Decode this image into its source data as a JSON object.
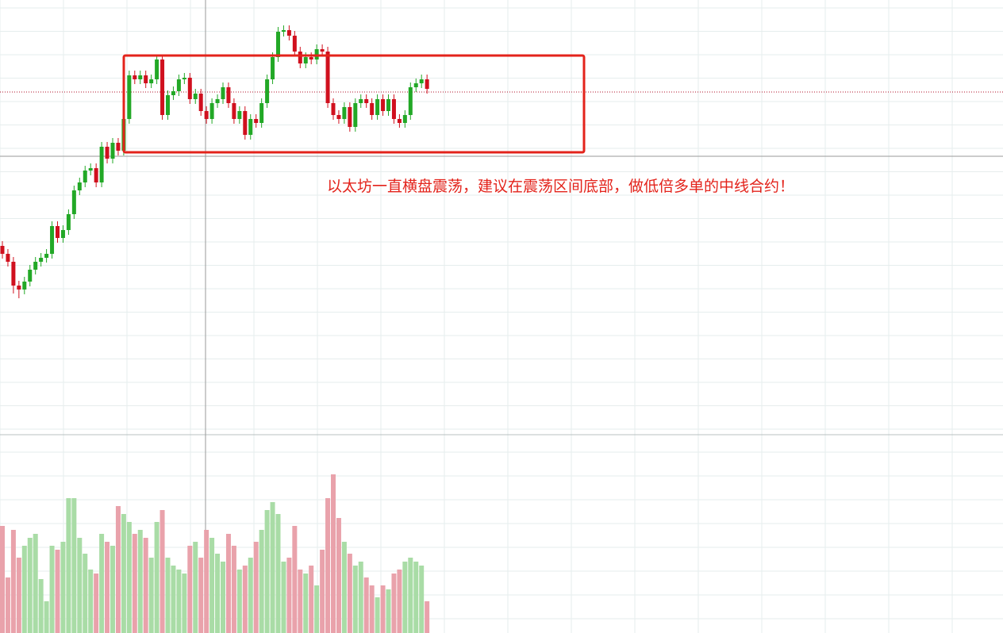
{
  "chart_data": {
    "type": "candlestick",
    "annotation": "以太坊一直横盘震荡，建议在震荡区间底部，做低倍多单的中线合约！",
    "open": [
      238,
      228,
      218,
      188,
      183,
      193,
      208,
      218,
      223,
      228,
      263,
      248,
      258,
      278,
      308,
      318,
      333,
      336,
      318,
      363,
      348,
      368,
      358,
      398,
      453,
      448,
      453,
      443,
      448,
      473,
      403,
      428,
      433,
      448,
      450,
      423,
      430,
      408,
      398,
      418,
      423,
      438,
      418,
      398,
      408,
      378,
      398,
      393,
      418,
      448,
      476,
      508,
      510,
      503,
      483,
      468,
      476,
      473,
      486,
      483,
      418,
      403,
      398,
      413,
      388,
      418,
      423,
      418,
      403,
      423,
      408,
      423,
      398,
      393,
      403,
      438,
      443,
      448
    ],
    "high": [
      244,
      234,
      224,
      194,
      199,
      214,
      224,
      229,
      234,
      269,
      269,
      264,
      284,
      314,
      324,
      339,
      342,
      342,
      369,
      369,
      374,
      374,
      404,
      459,
      459,
      459,
      459,
      454,
      479,
      479,
      434,
      439,
      454,
      456,
      456,
      436,
      436,
      414,
      424,
      429,
      444,
      444,
      424,
      414,
      414,
      404,
      404,
      424,
      454,
      482,
      514,
      516,
      516,
      509,
      489,
      482,
      482,
      492,
      492,
      489,
      424,
      409,
      419,
      419,
      424,
      429,
      429,
      424,
      429,
      429,
      429,
      429,
      404,
      409,
      444,
      449,
      454,
      454
    ],
    "low": [
      222,
      212,
      178,
      172,
      177,
      187,
      202,
      212,
      217,
      222,
      242,
      242,
      252,
      272,
      302,
      312,
      327,
      312,
      312,
      342,
      342,
      352,
      352,
      392,
      442,
      442,
      437,
      437,
      442,
      397,
      397,
      422,
      427,
      442,
      417,
      417,
      402,
      392,
      392,
      412,
      417,
      412,
      392,
      392,
      372,
      372,
      387,
      387,
      412,
      442,
      470,
      502,
      497,
      477,
      462,
      462,
      467,
      467,
      477,
      412,
      397,
      392,
      392,
      382,
      382,
      412,
      412,
      397,
      397,
      402,
      402,
      392,
      387,
      387,
      397,
      432,
      437,
      430
    ],
    "close": [
      228,
      218,
      188,
      183,
      193,
      208,
      218,
      223,
      228,
      263,
      248,
      258,
      278,
      308,
      318,
      333,
      336,
      318,
      363,
      348,
      368,
      358,
      398,
      453,
      448,
      453,
      443,
      448,
      473,
      403,
      428,
      433,
      448,
      450,
      423,
      430,
      408,
      398,
      418,
      423,
      438,
      418,
      398,
      408,
      378,
      398,
      393,
      418,
      448,
      476,
      508,
      510,
      503,
      483,
      468,
      476,
      473,
      486,
      483,
      418,
      403,
      398,
      413,
      388,
      418,
      423,
      418,
      403,
      423,
      408,
      423,
      398,
      393,
      403,
      438,
      443,
      448,
      436
    ],
    "volume": [
      135,
      70,
      130,
      95,
      110,
      120,
      125,
      68,
      40,
      110,
      105,
      115,
      170,
      170,
      120,
      100,
      80,
      75,
      125,
      115,
      110,
      160,
      150,
      140,
      125,
      130,
      120,
      95,
      140,
      155,
      95,
      85,
      80,
      75,
      110,
      115,
      95,
      130,
      120,
      100,
      90,
      125,
      110,
      80,
      85,
      95,
      115,
      130,
      155,
      165,
      150,
      90,
      95,
      135,
      80,
      75,
      85,
      60,
      105,
      170,
      200,
      145,
      115,
      100,
      85,
      90,
      70,
      60,
      45,
      60,
      55,
      75,
      80,
      90,
      95,
      90,
      85,
      40
    ],
    "ylim": [
      0,
      548
    ],
    "volume_ylim": [
      0,
      200
    ],
    "up_color": "#22a826",
    "down_color": "#d0101e",
    "volume_up_color": "#a9dca6",
    "volume_down_color": "#e9a2ab"
  }
}
